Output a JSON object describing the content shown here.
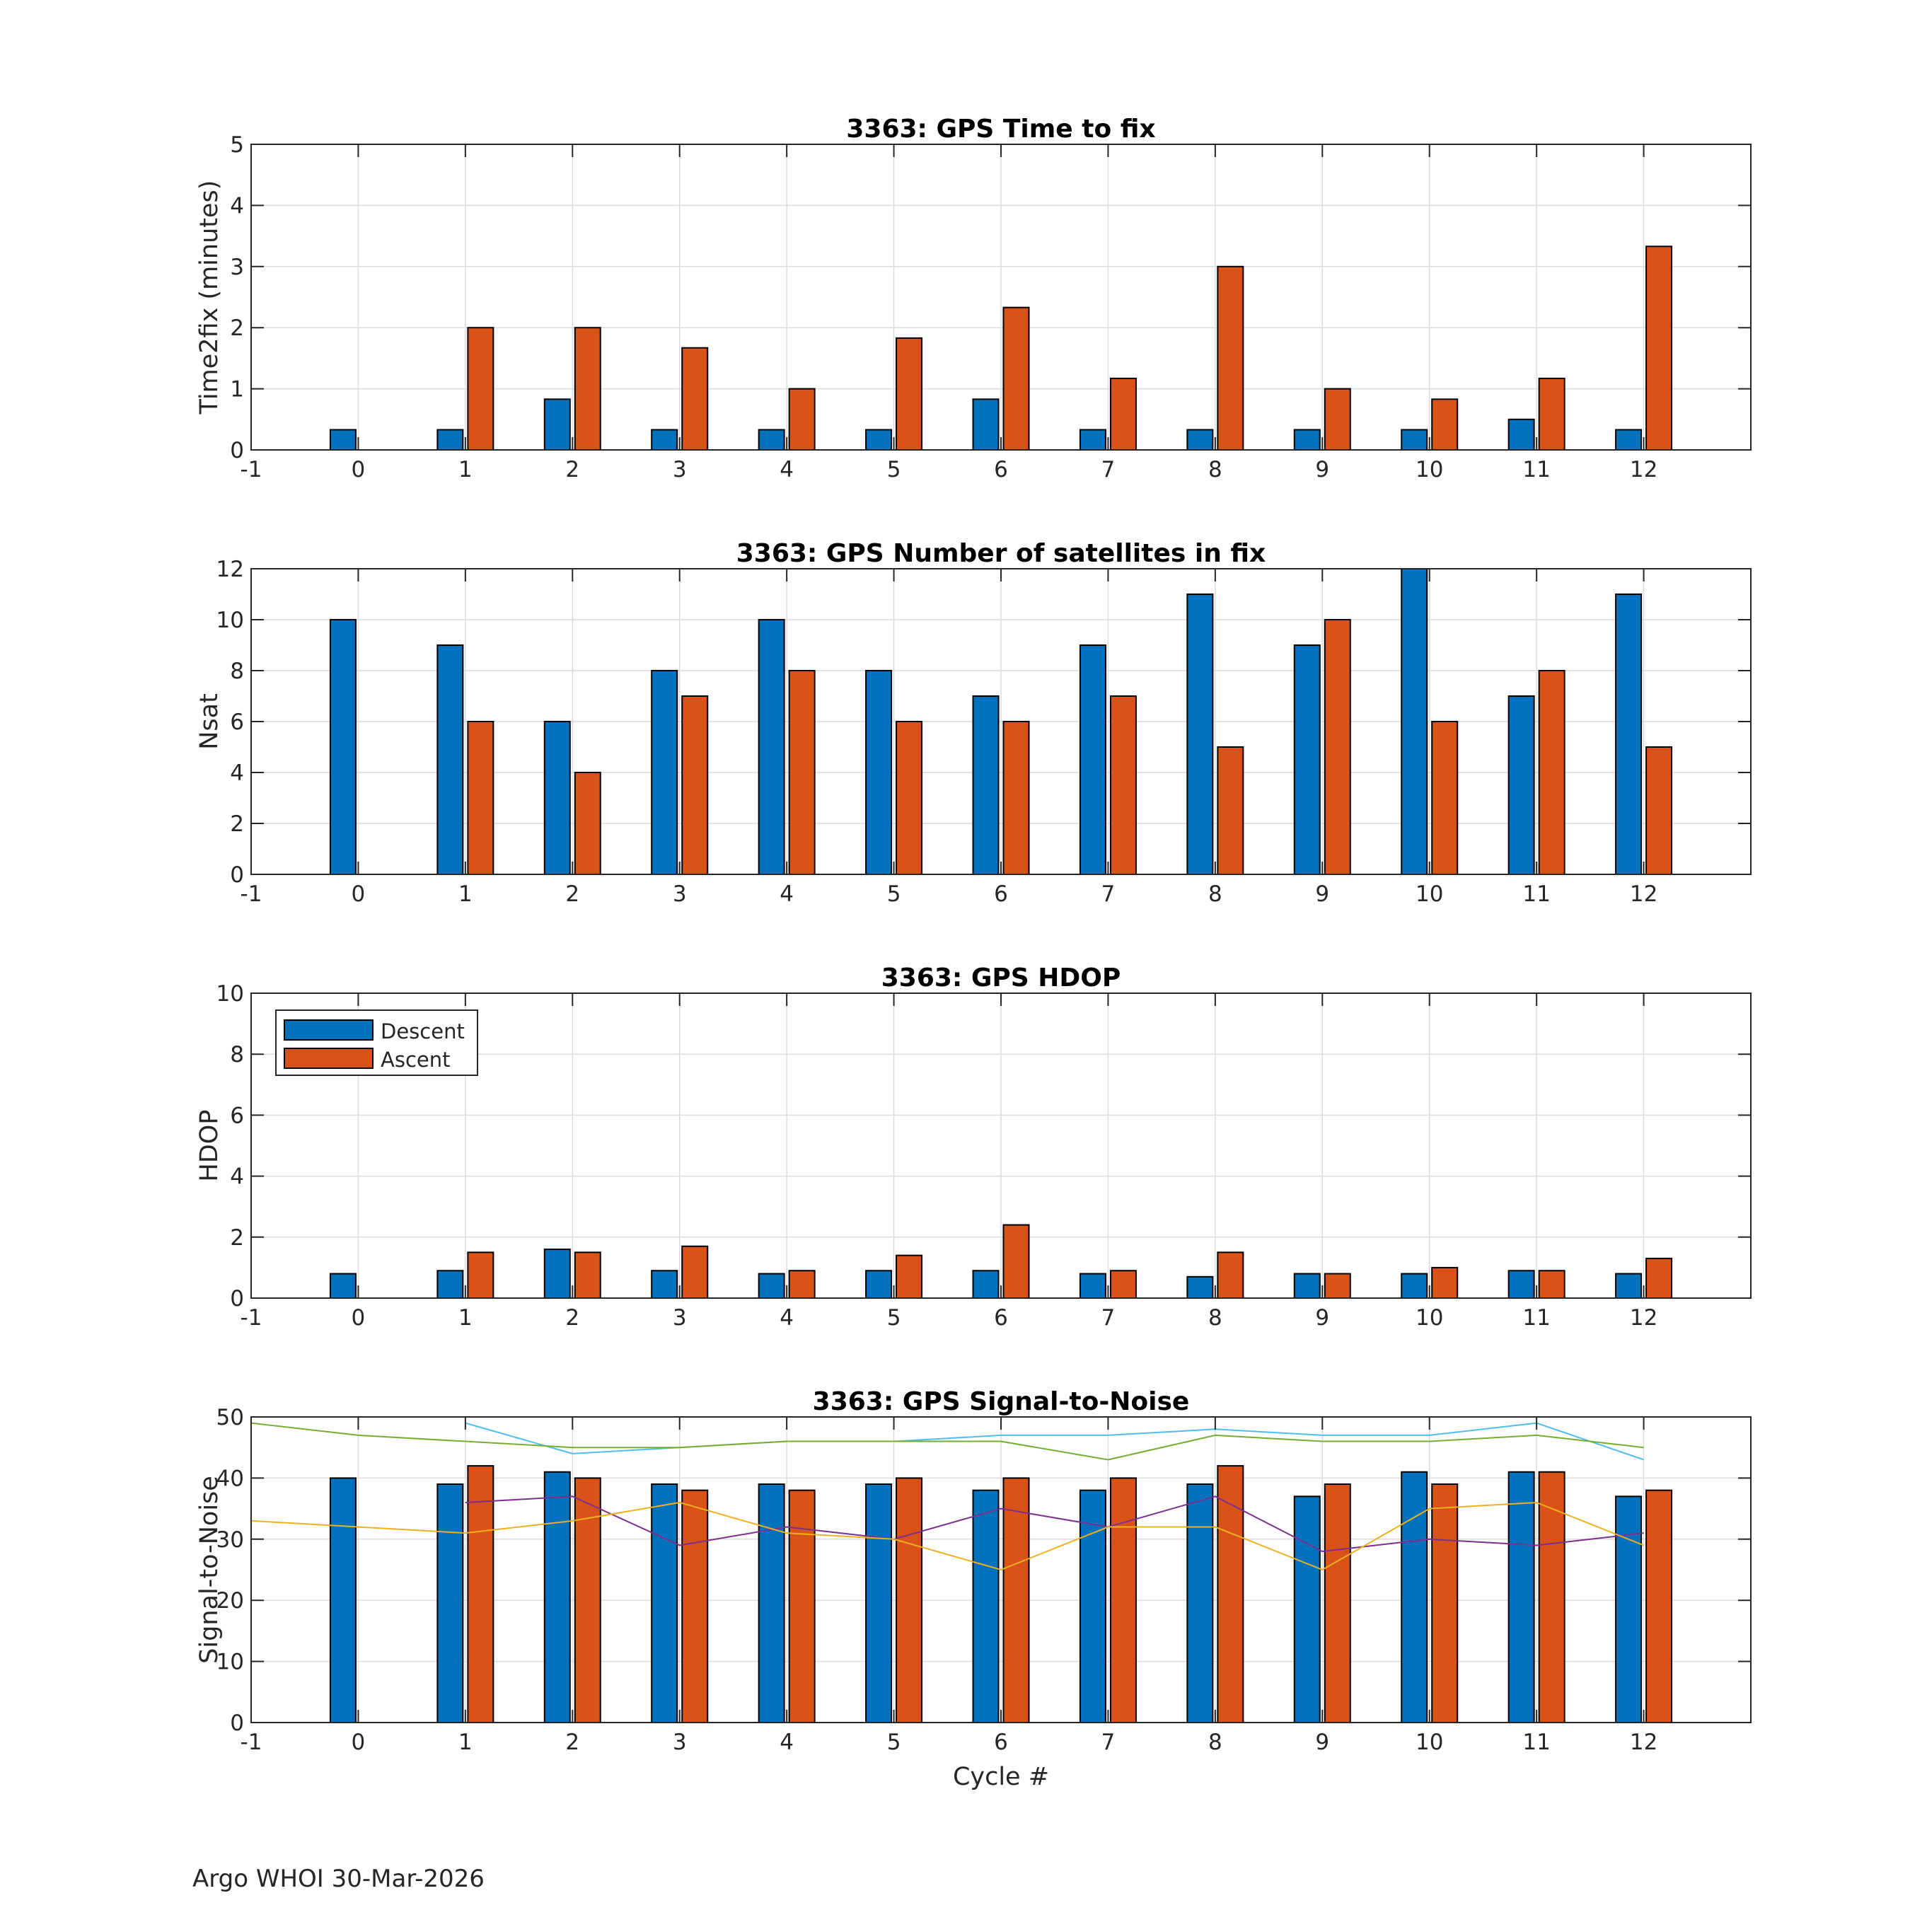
{
  "colors": {
    "descent": "#0072BD",
    "ascent": "#D95319",
    "snr_series": [
      "#4DBEEE",
      "#77AC30",
      "#7E2F8E",
      "#EDB120"
    ],
    "grid": "#dcdcdc",
    "axis": "#262626"
  },
  "footer": "Argo WHOI 30-Mar-2026",
  "legend": {
    "descent": "Descent",
    "ascent": "Ascent",
    "placement": "top-left",
    "panel": 2
  },
  "chart_data": [
    {
      "type": "bar",
      "title": "3363: GPS Time to fix",
      "xlabel": "",
      "ylabel": "Time2fix (minutes)",
      "xlim": [
        -1,
        13
      ],
      "ylim": [
        0,
        5
      ],
      "xticks": [
        -1,
        0,
        1,
        2,
        3,
        4,
        5,
        6,
        7,
        8,
        9,
        10,
        11,
        12
      ],
      "yticks": [
        0,
        1,
        2,
        3,
        4,
        5
      ],
      "grid": true,
      "categories": [
        0,
        1,
        2,
        3,
        4,
        5,
        6,
        7,
        8,
        9,
        10,
        11,
        12
      ],
      "series": [
        {
          "name": "Descent",
          "values": [
            0.33,
            0.33,
            0.83,
            0.33,
            0.33,
            0.33,
            0.83,
            0.33,
            0.33,
            0.33,
            0.33,
            0.5,
            0.33
          ]
        },
        {
          "name": "Ascent",
          "values": [
            null,
            2.0,
            2.0,
            1.67,
            1.0,
            1.83,
            2.33,
            1.17,
            3.0,
            1.0,
            0.83,
            1.17,
            3.33
          ]
        }
      ]
    },
    {
      "type": "bar",
      "title": "3363: GPS Number of satellites in fix",
      "xlabel": "",
      "ylabel": "Nsat",
      "xlim": [
        -1,
        13
      ],
      "ylim": [
        0,
        12
      ],
      "xticks": [
        -1,
        0,
        1,
        2,
        3,
        4,
        5,
        6,
        7,
        8,
        9,
        10,
        11,
        12
      ],
      "yticks": [
        0,
        2,
        4,
        6,
        8,
        10,
        12
      ],
      "grid": true,
      "categories": [
        0,
        1,
        2,
        3,
        4,
        5,
        6,
        7,
        8,
        9,
        10,
        11,
        12
      ],
      "series": [
        {
          "name": "Descent",
          "values": [
            10,
            9,
            6,
            8,
            10,
            8,
            7,
            9,
            11,
            9,
            12,
            7,
            11
          ]
        },
        {
          "name": "Ascent",
          "values": [
            null,
            6,
            4,
            7,
            8,
            6,
            6,
            7,
            5,
            10,
            6,
            8,
            5
          ]
        }
      ]
    },
    {
      "type": "bar",
      "title": "3363: GPS HDOP",
      "xlabel": "",
      "ylabel": "HDOP",
      "xlim": [
        -1,
        13
      ],
      "ylim": [
        0,
        10
      ],
      "xticks": [
        -1,
        0,
        1,
        2,
        3,
        4,
        5,
        6,
        7,
        8,
        9,
        10,
        11,
        12
      ],
      "yticks": [
        0,
        2,
        4,
        6,
        8,
        10
      ],
      "grid": true,
      "categories": [
        0,
        1,
        2,
        3,
        4,
        5,
        6,
        7,
        8,
        9,
        10,
        11,
        12
      ],
      "series": [
        {
          "name": "Descent",
          "values": [
            0.8,
            0.9,
            1.6,
            0.9,
            0.8,
            0.9,
            0.9,
            0.8,
            0.7,
            0.8,
            0.8,
            0.9,
            0.8
          ]
        },
        {
          "name": "Ascent",
          "values": [
            null,
            1.5,
            1.5,
            1.7,
            0.9,
            1.4,
            2.4,
            0.9,
            1.5,
            0.8,
            1.0,
            0.9,
            1.3
          ]
        }
      ]
    },
    {
      "type": "bar",
      "title": "3363: GPS Signal-to-Noise",
      "xlabel": "Cycle #",
      "ylabel": "Signal-to-Noise",
      "xlim": [
        -1,
        13
      ],
      "ylim": [
        0,
        50
      ],
      "xticks": [
        -1,
        0,
        1,
        2,
        3,
        4,
        5,
        6,
        7,
        8,
        9,
        10,
        11,
        12
      ],
      "yticks": [
        0,
        10,
        20,
        30,
        40,
        50
      ],
      "grid": true,
      "categories": [
        0,
        1,
        2,
        3,
        4,
        5,
        6,
        7,
        8,
        9,
        10,
        11,
        12
      ],
      "series": [
        {
          "name": "Descent",
          "values": [
            40,
            39,
            41,
            39,
            39,
            39,
            38,
            38,
            39,
            37,
            41,
            41,
            37
          ]
        },
        {
          "name": "Ascent",
          "values": [
            null,
            42,
            40,
            38,
            38,
            40,
            40,
            40,
            42,
            39,
            39,
            41,
            38
          ]
        }
      ],
      "lines": [
        {
          "x": [
            1,
            2,
            3,
            4,
            5,
            6,
            7,
            8,
            9,
            10,
            11,
            12
          ],
          "y": [
            49,
            44,
            45,
            46,
            46,
            47,
            47,
            48,
            47,
            47,
            49,
            43
          ]
        },
        {
          "x": [
            -1,
            0,
            1,
            2,
            3,
            4,
            5,
            6,
            7,
            8,
            9,
            10,
            11,
            12
          ],
          "y": [
            49,
            47,
            46,
            45,
            45,
            46,
            46,
            46,
            43,
            47,
            46,
            46,
            47,
            45
          ]
        },
        {
          "x": [
            1,
            2,
            3,
            4,
            5,
            6,
            7,
            8,
            9,
            10,
            11,
            12
          ],
          "y": [
            36,
            37,
            29,
            32,
            30,
            35,
            32,
            37,
            28,
            30,
            29,
            31
          ]
        },
        {
          "x": [
            -1,
            0,
            1,
            2,
            3,
            4,
            5,
            6,
            7,
            8,
            9,
            10,
            11,
            12
          ],
          "y": [
            33,
            32,
            31,
            33,
            36,
            31,
            30,
            25,
            32,
            32,
            25,
            35,
            36,
            29
          ]
        }
      ]
    }
  ]
}
